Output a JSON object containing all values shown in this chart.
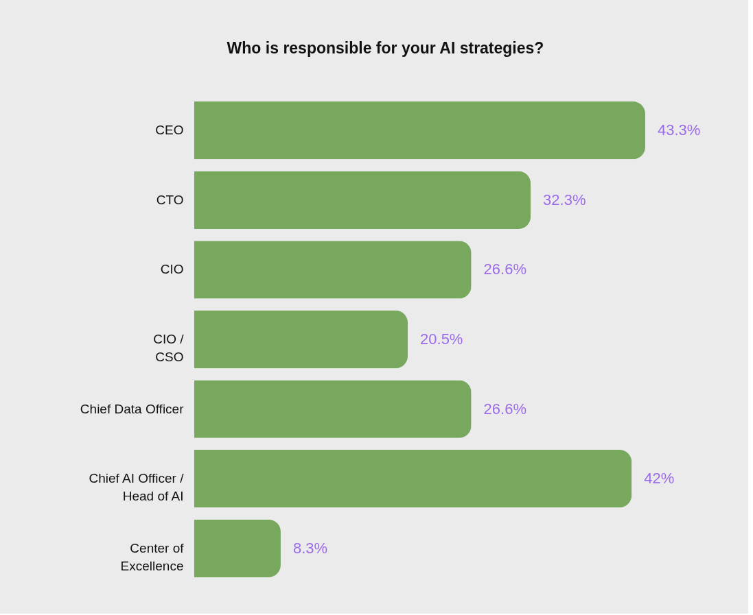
{
  "chart_data": {
    "type": "bar",
    "orientation": "horizontal",
    "title": "Who is responsible for your AI strategies?",
    "categories": [
      "CEO",
      "CTO",
      "CIO",
      "CIO /\nCSO",
      "Chief Data Officer",
      "Chief AI Officer /\nHead of AI",
      "Center of\nExcellence"
    ],
    "values": [
      43.3,
      32.3,
      26.6,
      20.5,
      26.6,
      42,
      8.3
    ],
    "value_labels": [
      "43.3%",
      "32.3%",
      "26.6%",
      "20.5%",
      "26.6%",
      "42%",
      "8.3%"
    ],
    "color": "#78a85e"
  }
}
